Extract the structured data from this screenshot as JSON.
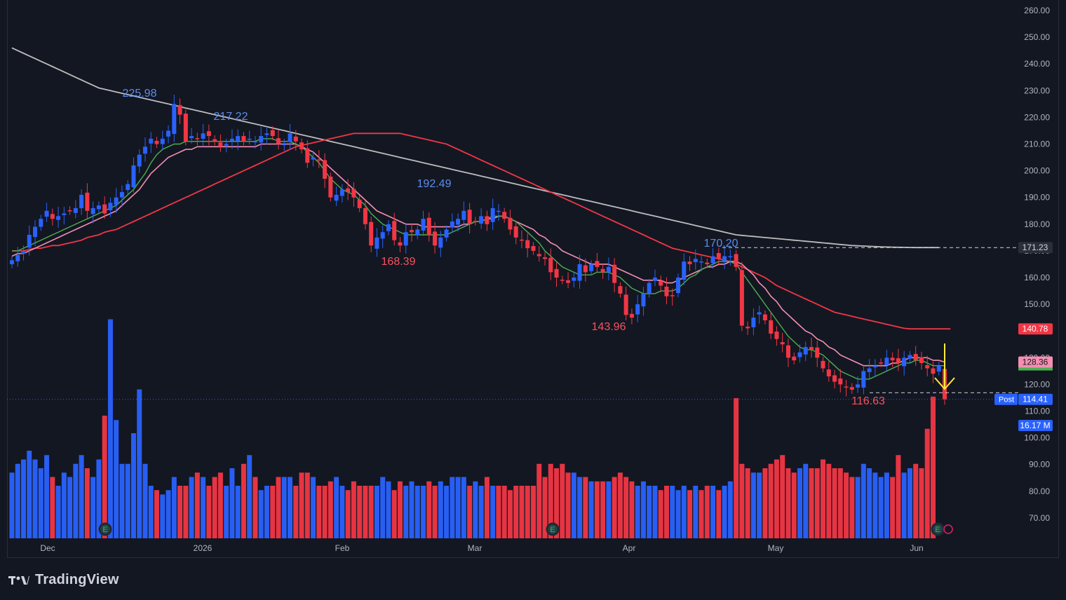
{
  "brand": {
    "name": "TradingView",
    "logo_icon": "tradingview-logo-icon"
  },
  "colors": {
    "background": "#131722",
    "up": "#2962ff",
    "down": "#f23645",
    "sma_short": "#4caf50",
    "sma_mid": "#f48fb1",
    "sma_long": "#f23645",
    "sma_200": "#bdbdbd",
    "arrow": "#ffeb3b",
    "axis_text": "#b2b5be"
  },
  "chart_data": {
    "type": "candlestick",
    "title": "",
    "y_axis": {
      "ticks": [
        "260.00",
        "250.00",
        "240.00",
        "230.00",
        "220.00",
        "210.00",
        "200.00",
        "190.00",
        "180.00",
        "170.00",
        "160.00",
        "150.00",
        "140.00",
        "130.00",
        "120.00",
        "110.00",
        "100.00",
        "90.00",
        "80.00",
        "70.00"
      ],
      "range": [
        63,
        262
      ]
    },
    "x_axis": {
      "labels": [
        "Dec",
        "2026",
        "Feb",
        "Mar",
        "Apr",
        "May",
        "Jun"
      ]
    },
    "price_labels": [
      {
        "text": "171.23",
        "type": "sma_200",
        "value": 171.23
      },
      {
        "text": "140.78",
        "type": "sma_long",
        "value": 140.78
      },
      {
        "text": "128.36",
        "type": "sma_mid",
        "value": 128.36
      },
      {
        "text": "114.41",
        "type": "last",
        "value": 114.41,
        "tag": "Post"
      },
      {
        "text": "16.17 M",
        "type": "volume",
        "value": 16.17
      }
    ],
    "annotations": [
      {
        "text": "225.98",
        "kind": "high",
        "value": 225.98
      },
      {
        "text": "217.22",
        "kind": "high",
        "value": 217.22
      },
      {
        "text": "168.39",
        "kind": "low",
        "value": 168.39
      },
      {
        "text": "192.49",
        "kind": "high",
        "value": 192.49
      },
      {
        "text": "143.96",
        "kind": "low",
        "value": 143.96
      },
      {
        "text": "170.20",
        "kind": "high",
        "value": 170.2
      },
      {
        "text": "116.63",
        "kind": "low",
        "value": 116.63
      }
    ],
    "earnings_markers": [
      "E",
      "E",
      "E"
    ],
    "closes": [
      166.5,
      168.5,
      170,
      176,
      179,
      182,
      185,
      182,
      183,
      184,
      185,
      186,
      191,
      185,
      186,
      187,
      184,
      188,
      190,
      192,
      195,
      202,
      206,
      209,
      212,
      210,
      212,
      215,
      225,
      221,
      211,
      213,
      212,
      214,
      213,
      211,
      209,
      210,
      212,
      213,
      211,
      212,
      211,
      213,
      214,
      213,
      210,
      210,
      214,
      211,
      208,
      203,
      205,
      204,
      197,
      190,
      191,
      193,
      192,
      190,
      186,
      180,
      172,
      175,
      177,
      180,
      174,
      172,
      177,
      177,
      178,
      182,
      176,
      172,
      175,
      178,
      181,
      182,
      185,
      180,
      181,
      183,
      180,
      186,
      185,
      182,
      178,
      175,
      174,
      171,
      170,
      168,
      167,
      162,
      160,
      159,
      158,
      160,
      165,
      162,
      165,
      164,
      162,
      164,
      158,
      154,
      146,
      145,
      150,
      154,
      158,
      160,
      157,
      153,
      153,
      160,
      166,
      165,
      167,
      166,
      165,
      168,
      167,
      168,
      168,
      164,
      142,
      141,
      145,
      147,
      144,
      139,
      137,
      135,
      130,
      129,
      132,
      134,
      133,
      130,
      126,
      123,
      121,
      120,
      119,
      118,
      120,
      125,
      126,
      127,
      128,
      130,
      129,
      128,
      130,
      131,
      129,
      128,
      126,
      124,
      127,
      114.41
    ],
    "sma_short": [
      170,
      170,
      171,
      172,
      173,
      174,
      175,
      176,
      177,
      178,
      179,
      180,
      181,
      182,
      183,
      184,
      185,
      186,
      187,
      189,
      191,
      193,
      196,
      199,
      203,
      206,
      208,
      209,
      210,
      210,
      211,
      211,
      211,
      211,
      211,
      211,
      211,
      211,
      211,
      211,
      211,
      211,
      211,
      212,
      212,
      212,
      211,
      211,
      211,
      210,
      209,
      207,
      205,
      203,
      200,
      197,
      195,
      193,
      192,
      191,
      189,
      187,
      184,
      182,
      180,
      179,
      178,
      177,
      176,
      176,
      176,
      176,
      176,
      176,
      176,
      176,
      177,
      178,
      179,
      180,
      181,
      181,
      182,
      183,
      183,
      183,
      182,
      181,
      179,
      177,
      175,
      173,
      170,
      168,
      166,
      164,
      163,
      162,
      161,
      161,
      161,
      162,
      162,
      162,
      161,
      160,
      158,
      156,
      155,
      154,
      154,
      154,
      155,
      155,
      155,
      156,
      158,
      160,
      161,
      163,
      164,
      165,
      166,
      166,
      166,
      165,
      162,
      159,
      156,
      153,
      150,
      147,
      144,
      141,
      138,
      136,
      134,
      133,
      133,
      132,
      131,
      129,
      127,
      125,
      124,
      123,
      122,
      122,
      122,
      123,
      124,
      125,
      126,
      127,
      128,
      128,
      129,
      129,
      128,
      127,
      127,
      127
    ],
    "sma_mid": [
      168,
      169,
      169,
      170,
      171,
      172,
      173,
      174,
      175,
      176,
      177,
      178,
      179,
      180,
      181,
      182,
      183,
      184,
      185,
      187,
      189,
      191,
      193,
      196,
      199,
      201,
      203,
      205,
      206,
      207,
      208,
      208,
      209,
      209,
      209,
      209,
      209,
      209,
      209,
      209,
      209,
      209,
      209,
      210,
      210,
      210,
      210,
      210,
      210,
      210,
      209,
      208,
      207,
      205,
      203,
      201,
      199,
      197,
      195,
      193,
      191,
      189,
      187,
      185,
      184,
      183,
      182,
      181,
      180,
      180,
      180,
      179,
      179,
      179,
      179,
      179,
      179,
      179,
      180,
      180,
      181,
      181,
      182,
      182,
      183,
      183,
      182,
      181,
      180,
      179,
      178,
      176,
      175,
      173,
      172,
      170,
      169,
      168,
      167,
      166,
      165,
      165,
      165,
      165,
      164,
      163,
      162,
      161,
      160,
      159,
      159,
      159,
      159,
      158,
      158,
      159,
      160,
      161,
      162,
      163,
      164,
      164,
      165,
      165,
      166,
      166,
      165,
      163,
      161,
      158,
      156,
      153,
      151,
      148,
      146,
      144,
      142,
      140,
      139,
      137,
      136,
      134,
      133,
      131,
      130,
      129,
      128,
      127,
      127,
      127,
      127,
      127,
      128,
      128,
      129,
      130,
      130,
      130,
      130,
      129,
      129,
      128.36
    ],
    "sma_long": [
      170,
      170,
      170,
      170.5,
      171,
      171,
      171.5,
      172,
      172,
      172.5,
      173,
      173.5,
      174,
      175,
      175.5,
      176,
      177,
      177.5,
      178,
      179,
      180,
      181,
      182,
      183,
      184,
      185,
      186,
      187,
      188,
      189,
      190,
      191,
      192,
      193,
      194,
      195,
      196,
      197,
      198,
      199,
      200,
      201,
      202,
      203,
      204,
      205,
      206,
      207,
      208,
      209,
      209.5,
      210,
      210.5,
      211,
      211.5,
      212,
      212.5,
      213,
      213.5,
      214,
      214,
      214,
      214,
      214,
      214,
      214,
      214,
      214,
      213.5,
      213,
      212.5,
      212,
      211.5,
      211,
      210.5,
      210,
      209,
      208,
      207,
      206,
      205,
      204,
      203,
      202,
      201,
      200,
      199,
      198,
      197,
      196,
      195,
      194,
      193,
      192,
      191,
      190,
      189,
      188,
      187,
      186,
      185,
      184,
      183,
      182,
      181,
      180,
      179,
      178,
      177,
      176,
      175,
      174,
      173,
      172,
      171,
      170.5,
      170,
      169.5,
      169,
      168.5,
      168,
      167.5,
      167,
      166.5,
      166,
      165,
      164,
      163,
      162,
      161,
      160,
      158.5,
      157,
      156,
      155,
      154,
      153,
      152,
      151,
      150,
      149,
      148,
      147,
      146.5,
      146,
      145.5,
      145,
      144.5,
      144,
      143.5,
      143,
      142.5,
      142,
      141.5,
      141,
      140.78,
      140.78,
      140.78,
      140.78,
      140.78,
      140.78,
      140.78,
      140.78
    ],
    "sma_200": [
      246,
      245,
      244,
      243,
      242,
      241,
      240,
      239,
      238,
      237,
      236,
      235,
      234,
      233,
      232,
      231,
      230.5,
      230,
      229.5,
      229,
      228.5,
      228,
      227.5,
      227,
      226.5,
      226,
      225.5,
      225,
      224.5,
      224,
      223.5,
      223,
      222.5,
      222,
      221.5,
      221,
      220.5,
      220,
      219.5,
      219,
      218.5,
      218,
      217.5,
      217,
      216.5,
      216,
      215.5,
      215,
      214.5,
      214,
      213.5,
      213,
      212.5,
      212,
      211.5,
      211,
      210.5,
      210,
      209.5,
      209,
      208.5,
      208,
      207.5,
      207,
      206.5,
      206,
      205.5,
      205,
      204.5,
      204,
      203.5,
      203,
      202.5,
      202,
      201.5,
      201,
      200.5,
      200,
      199.5,
      199,
      198.5,
      198,
      197.5,
      197,
      196.5,
      196,
      195.5,
      195,
      194.5,
      194,
      193.5,
      193,
      192.5,
      192,
      191.5,
      191,
      190.5,
      190,
      189.5,
      189,
      188.5,
      188,
      187.5,
      187,
      186.5,
      186,
      185.5,
      185,
      184.5,
      184,
      183.5,
      183,
      182.5,
      182,
      181.5,
      181,
      180.5,
      180,
      179.5,
      179,
      178.5,
      178,
      177.5,
      177,
      176.5,
      176,
      175.8,
      175.6,
      175.4,
      175.2,
      175,
      174.8,
      174.6,
      174.4,
      174.2,
      174,
      173.8,
      173.6,
      173.4,
      173.2,
      173,
      172.8,
      172.6,
      172.4,
      172.2,
      172,
      171.9,
      171.8,
      171.7,
      171.6,
      171.5,
      171.45,
      171.4,
      171.35,
      171.3,
      171.25,
      171.23,
      171.23,
      171.23,
      171.23,
      171.23
    ],
    "volumes": [
      7.5,
      8.5,
      9,
      10,
      9,
      8,
      9.5,
      7,
      6,
      7.5,
      7,
      8.5,
      9.5,
      8,
      7,
      9,
      14,
      25,
      13.5,
      8.5,
      8.5,
      12,
      17,
      8.5,
      6,
      5.5,
      5,
      5.5,
      7,
      6,
      6,
      7,
      7.5,
      7,
      6,
      7,
      7.5,
      6,
      8,
      6,
      8.5,
      9.5,
      7,
      5.5,
      6,
      6,
      7,
      7,
      7,
      6,
      7.5,
      7.5,
      7,
      6,
      6,
      6.5,
      7,
      6,
      5.5,
      6.5,
      6,
      6,
      6,
      6,
      7,
      6.5,
      5.5,
      6.5,
      6,
      6.5,
      6,
      6,
      6.5,
      6,
      6.5,
      6,
      7,
      7,
      7,
      6,
      6.5,
      6,
      7,
      6,
      6,
      6,
      5.5,
      6,
      6,
      6,
      6,
      8.5,
      7,
      8.5,
      8,
      8.5,
      7.5,
      7.5,
      7,
      7,
      6.5,
      6.5,
      6.5,
      6.5,
      7,
      7.5,
      7,
      6.5,
      6,
      6.5,
      6,
      6,
      5.5,
      6,
      6,
      5.5,
      6,
      5.5,
      6,
      5.5,
      6,
      6,
      5.5,
      6,
      6.5,
      16,
      8.5,
      8,
      7.5,
      7.5,
      8,
      8.5,
      9,
      9.5,
      8,
      7.5,
      8,
      8.5,
      8,
      8,
      9,
      8.5,
      8,
      8,
      7.5,
      7,
      7,
      8.5,
      8,
      7.5,
      7,
      7.5,
      7,
      9.5,
      7.5,
      8,
      8.5,
      8,
      12.5,
      16.17
    ],
    "earnings_icon": "earnings-badge-icon"
  }
}
